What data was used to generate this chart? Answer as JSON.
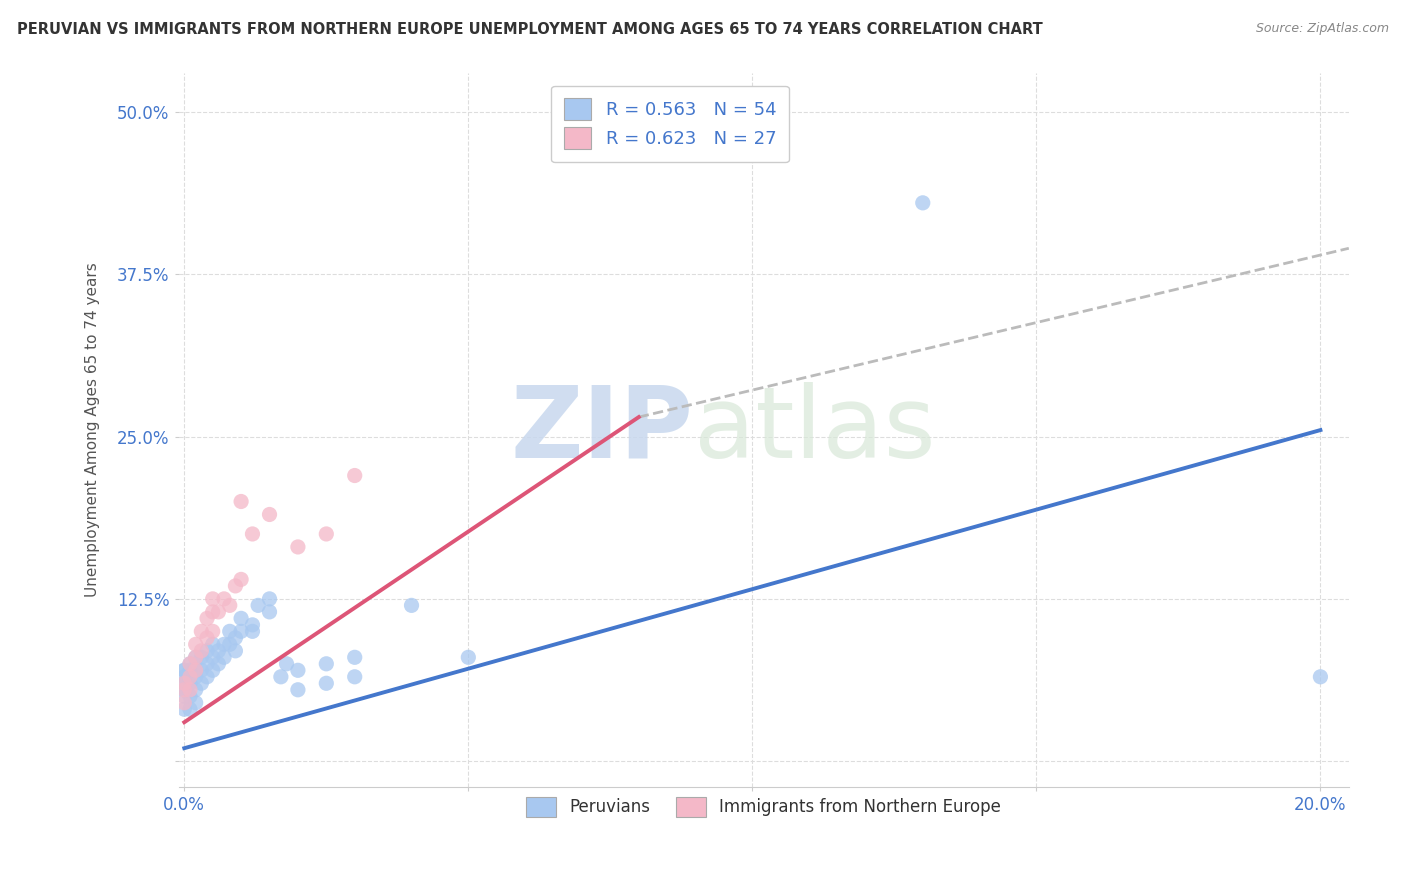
{
  "title": "PERUVIAN VS IMMIGRANTS FROM NORTHERN EUROPE UNEMPLOYMENT AMONG AGES 65 TO 74 YEARS CORRELATION CHART",
  "source": "Source: ZipAtlas.com",
  "ylabel": "Unemployment Among Ages 65 to 74 years",
  "xlim": [
    -0.001,
    0.205
  ],
  "ylim": [
    -0.02,
    0.53
  ],
  "xticks": [
    0.0,
    0.05,
    0.1,
    0.15,
    0.2
  ],
  "yticks": [
    0.0,
    0.125,
    0.25,
    0.375,
    0.5
  ],
  "xtick_labels": [
    "0.0%",
    "",
    "",
    "",
    "20.0%"
  ],
  "ytick_labels": [
    "",
    "12.5%",
    "25.0%",
    "37.5%",
    "50.0%"
  ],
  "blue_color": "#a8c8f0",
  "pink_color": "#f4b8c8",
  "R_blue": 0.563,
  "N_blue": 54,
  "R_pink": 0.623,
  "N_pink": 27,
  "watermark_zip": "ZIP",
  "watermark_atlas": "atlas",
  "legend_labels": [
    "Peruvians",
    "Immigrants from Northern Europe"
  ],
  "blue_scatter": [
    [
      0.0,
      0.04
    ],
    [
      0.0,
      0.05
    ],
    [
      0.0,
      0.055
    ],
    [
      0.0,
      0.06
    ],
    [
      0.0,
      0.065
    ],
    [
      0.0,
      0.07
    ],
    [
      0.0,
      0.07
    ],
    [
      0.001,
      0.04
    ],
    [
      0.001,
      0.05
    ],
    [
      0.001,
      0.06
    ],
    [
      0.001,
      0.065
    ],
    [
      0.001,
      0.07
    ],
    [
      0.001,
      0.075
    ],
    [
      0.002,
      0.045
    ],
    [
      0.002,
      0.055
    ],
    [
      0.002,
      0.065
    ],
    [
      0.002,
      0.07
    ],
    [
      0.002,
      0.08
    ],
    [
      0.003,
      0.06
    ],
    [
      0.003,
      0.07
    ],
    [
      0.003,
      0.08
    ],
    [
      0.004,
      0.065
    ],
    [
      0.004,
      0.075
    ],
    [
      0.004,
      0.085
    ],
    [
      0.005,
      0.07
    ],
    [
      0.005,
      0.08
    ],
    [
      0.005,
      0.09
    ],
    [
      0.006,
      0.075
    ],
    [
      0.006,
      0.085
    ],
    [
      0.007,
      0.08
    ],
    [
      0.007,
      0.09
    ],
    [
      0.008,
      0.09
    ],
    [
      0.008,
      0.1
    ],
    [
      0.009,
      0.085
    ],
    [
      0.009,
      0.095
    ],
    [
      0.01,
      0.1
    ],
    [
      0.01,
      0.11
    ],
    [
      0.012,
      0.1
    ],
    [
      0.012,
      0.105
    ],
    [
      0.013,
      0.12
    ],
    [
      0.015,
      0.115
    ],
    [
      0.015,
      0.125
    ],
    [
      0.017,
      0.065
    ],
    [
      0.018,
      0.075
    ],
    [
      0.02,
      0.055
    ],
    [
      0.02,
      0.07
    ],
    [
      0.025,
      0.06
    ],
    [
      0.025,
      0.075
    ],
    [
      0.03,
      0.065
    ],
    [
      0.03,
      0.08
    ],
    [
      0.04,
      0.12
    ],
    [
      0.05,
      0.08
    ],
    [
      0.13,
      0.43
    ],
    [
      0.2,
      0.065
    ]
  ],
  "pink_scatter": [
    [
      0.0,
      0.045
    ],
    [
      0.0,
      0.055
    ],
    [
      0.0,
      0.06
    ],
    [
      0.001,
      0.055
    ],
    [
      0.001,
      0.065
    ],
    [
      0.001,
      0.075
    ],
    [
      0.002,
      0.07
    ],
    [
      0.002,
      0.08
    ],
    [
      0.002,
      0.09
    ],
    [
      0.003,
      0.085
    ],
    [
      0.003,
      0.1
    ],
    [
      0.004,
      0.095
    ],
    [
      0.004,
      0.11
    ],
    [
      0.005,
      0.1
    ],
    [
      0.005,
      0.115
    ],
    [
      0.005,
      0.125
    ],
    [
      0.006,
      0.115
    ],
    [
      0.007,
      0.125
    ],
    [
      0.008,
      0.12
    ],
    [
      0.009,
      0.135
    ],
    [
      0.01,
      0.14
    ],
    [
      0.01,
      0.2
    ],
    [
      0.012,
      0.175
    ],
    [
      0.015,
      0.19
    ],
    [
      0.02,
      0.165
    ],
    [
      0.025,
      0.175
    ],
    [
      0.03,
      0.22
    ]
  ],
  "blue_trend_x": [
    0.0,
    0.2
  ],
  "blue_trend_y": [
    0.01,
    0.255
  ],
  "pink_trend_x": [
    0.0,
    0.08
  ],
  "pink_trend_y": [
    0.03,
    0.265
  ],
  "dash_trend_x": [
    0.08,
    0.205
  ],
  "dash_trend_y": [
    0.265,
    0.395
  ],
  "grid_color": "#dddddd",
  "background_color": "#ffffff",
  "line_blue": "#4477cc",
  "line_pink": "#dd5577",
  "line_dash": "#bbbbbb"
}
